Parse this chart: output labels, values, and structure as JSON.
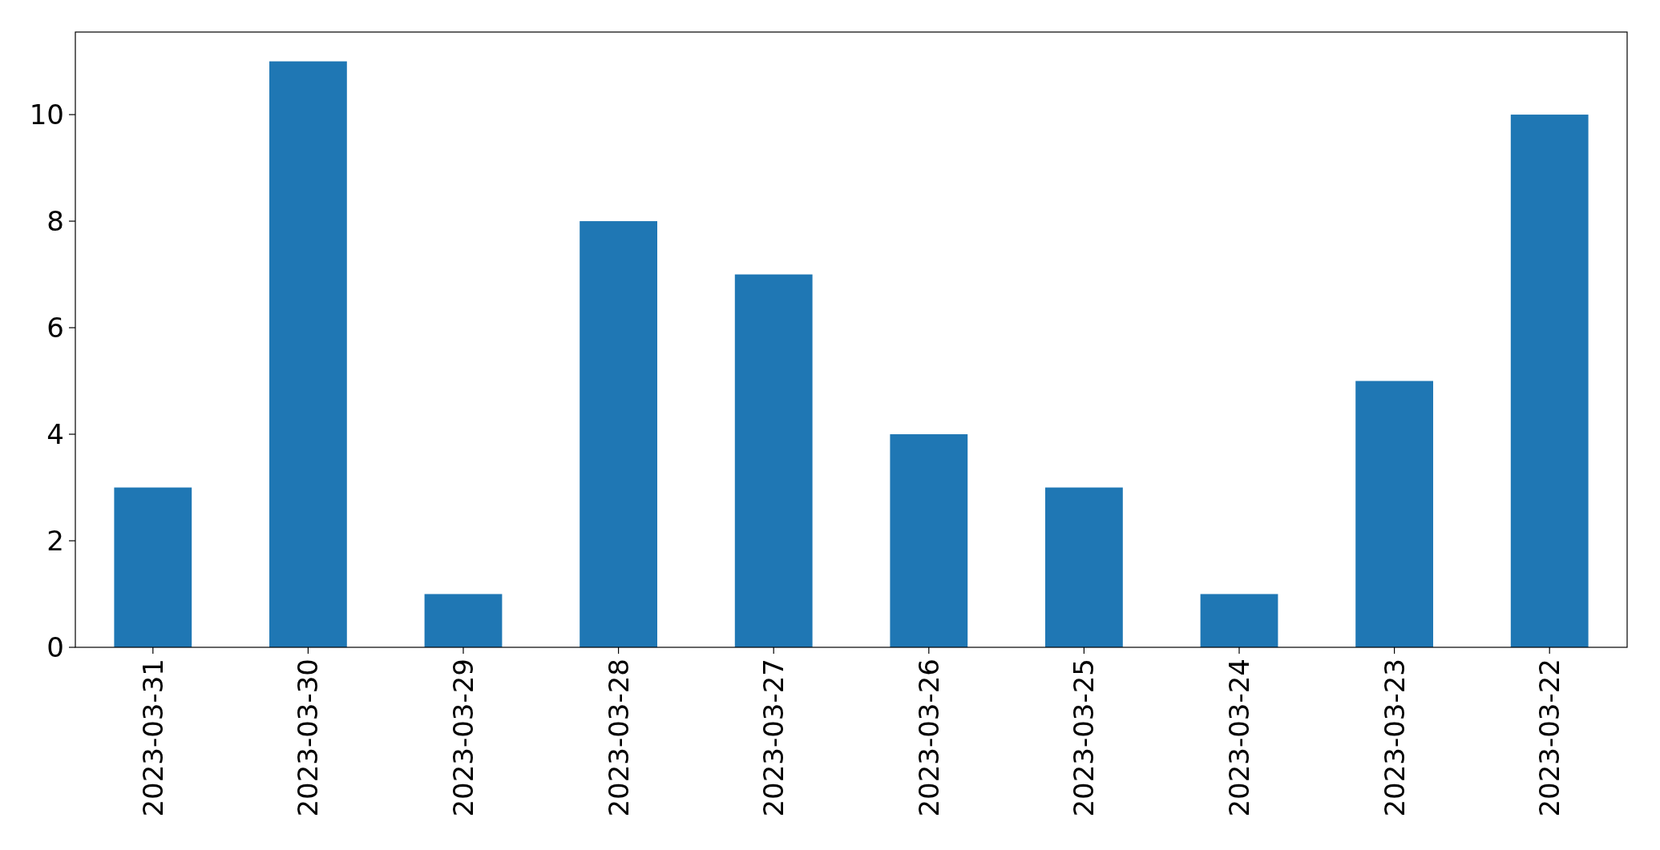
{
  "chart_data": {
    "type": "bar",
    "categories": [
      "2023-03-31",
      "2023-03-30",
      "2023-03-29",
      "2023-03-28",
      "2023-03-27",
      "2023-03-26",
      "2023-03-25",
      "2023-03-24",
      "2023-03-23",
      "2023-03-22"
    ],
    "values": [
      3,
      11,
      1,
      8,
      7,
      4,
      3,
      1,
      5,
      10
    ],
    "color": "#1f77b4",
    "ylim": [
      0,
      11.55
    ],
    "yticks": [
      0,
      2,
      4,
      6,
      8,
      10
    ],
    "grid": false
  }
}
